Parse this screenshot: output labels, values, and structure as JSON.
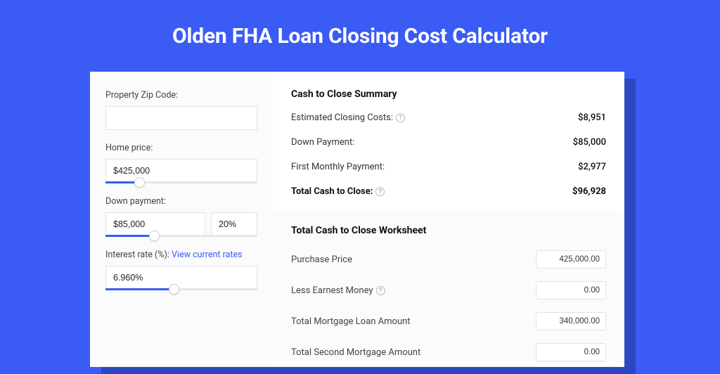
{
  "page": {
    "title": "Olden FHA Loan Closing Cost Calculator",
    "background_color": "#3b5bf5",
    "shadow_color": "#2d47c2",
    "card_background": "#ffffff",
    "panel_background": "#fbfbfc"
  },
  "inputs": {
    "zip": {
      "label": "Property Zip Code:",
      "value": ""
    },
    "home_price": {
      "label": "Home price:",
      "value": "$425,000",
      "slider_pct": 22
    },
    "down_payment": {
      "label": "Down payment:",
      "value": "$85,000",
      "percent": "20%",
      "slider_pct": 32
    },
    "interest_rate": {
      "label": "Interest rate (%):",
      "link_text": "View current rates",
      "value": "6.960%",
      "slider_pct": 45
    }
  },
  "summary": {
    "title": "Cash to Close Summary",
    "rows": [
      {
        "label": "Estimated Closing Costs:",
        "help": true,
        "value": "$8,951",
        "bold": false
      },
      {
        "label": "Down Payment:",
        "help": false,
        "value": "$85,000",
        "bold": false
      },
      {
        "label": "First Monthly Payment:",
        "help": false,
        "value": "$2,977",
        "bold": false
      },
      {
        "label": "Total Cash to Close:",
        "help": true,
        "value": "$96,928",
        "bold": true
      }
    ]
  },
  "worksheet": {
    "title": "Total Cash to Close Worksheet",
    "rows": [
      {
        "label": "Purchase Price",
        "help": false,
        "value": "425,000.00"
      },
      {
        "label": "Less Earnest Money",
        "help": true,
        "value": "0.00"
      },
      {
        "label": "Total Mortgage Loan Amount",
        "help": false,
        "value": "340,000.00"
      },
      {
        "label": "Total Second Mortgage Amount",
        "help": false,
        "value": "0.00"
      }
    ]
  }
}
